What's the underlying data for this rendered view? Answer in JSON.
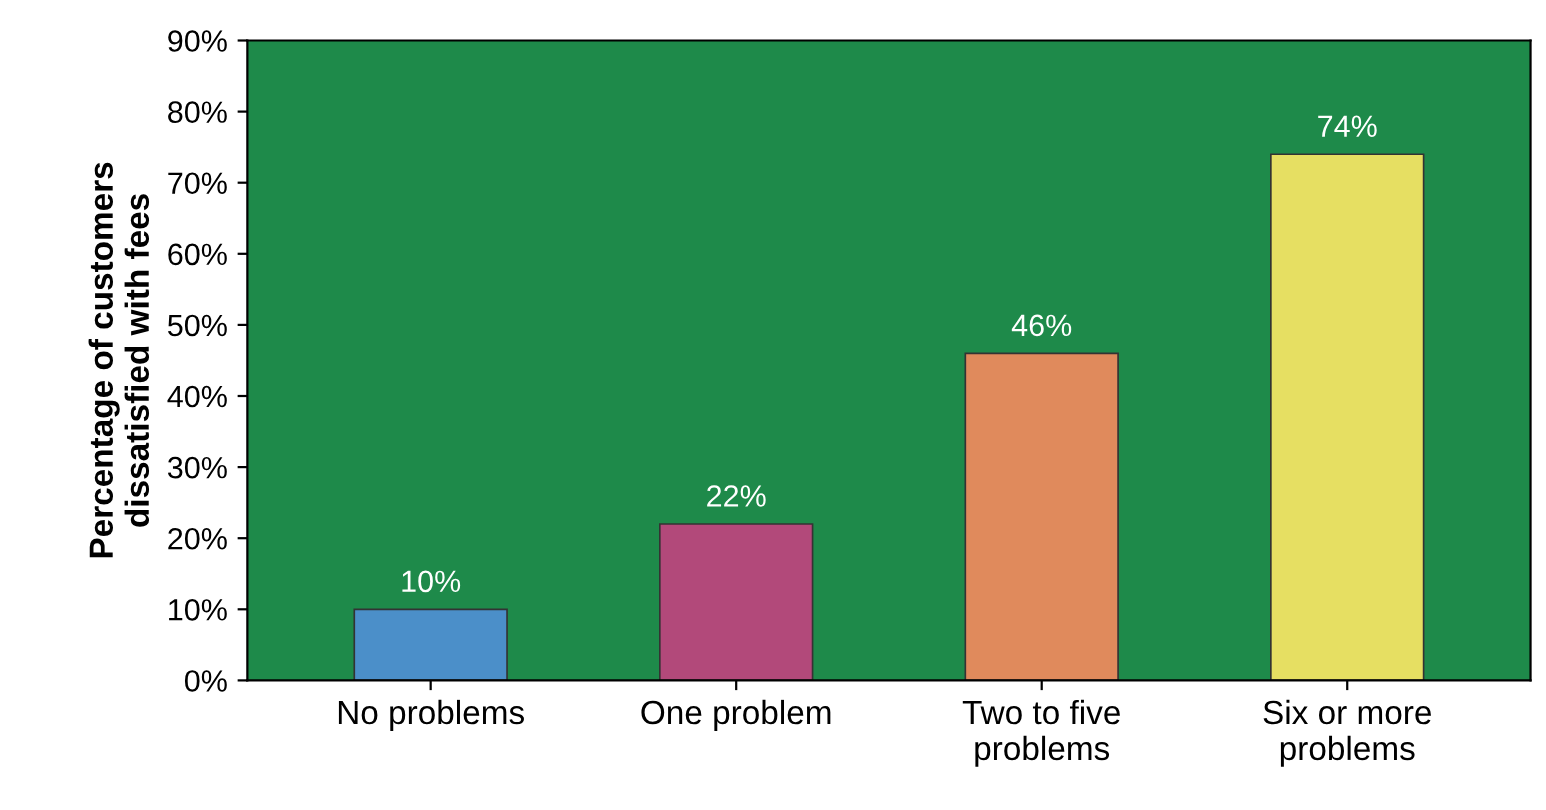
{
  "chart_data": {
    "type": "bar",
    "ylabel": "Percentage of customers\ndissatisfied with fees",
    "categories": [
      "No problems",
      "One problem",
      "Two to five\nproblems",
      "Six or more\nproblems"
    ],
    "values": [
      10,
      22,
      46,
      74
    ],
    "colors": [
      "#4b8fc9",
      "#b2497a",
      "#e08a5c",
      "#e6df62"
    ],
    "value_labels": [
      "10%",
      "22%",
      "46%",
      "74%"
    ],
    "ylim": [
      0,
      90
    ],
    "yticks": [
      {
        "value": 0,
        "label": "0%"
      },
      {
        "value": 10,
        "label": "10%"
      },
      {
        "value": 20,
        "label": "20%"
      },
      {
        "value": 30,
        "label": "30%"
      },
      {
        "value": 40,
        "label": "40%"
      },
      {
        "value": 50,
        "label": "50%"
      },
      {
        "value": 60,
        "label": "60%"
      },
      {
        "value": 70,
        "label": "70%"
      },
      {
        "value": 80,
        "label": "80%"
      },
      {
        "value": 90,
        "label": "90%"
      }
    ],
    "grid": false
  }
}
